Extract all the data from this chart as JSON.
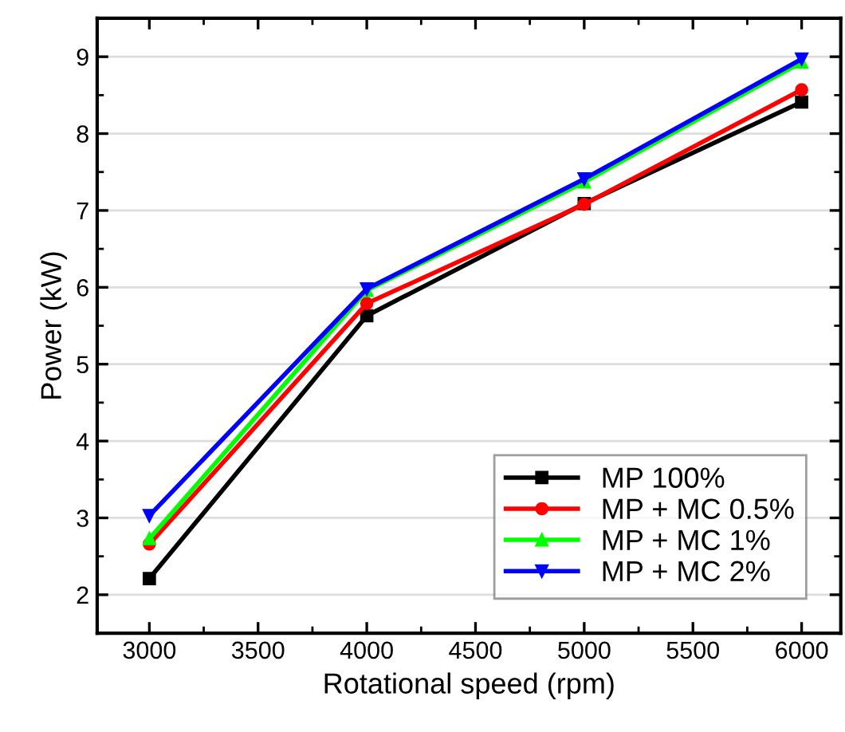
{
  "chart_data": {
    "type": "line",
    "xlabel": "Rotational speed (rpm)",
    "ylabel": "Power (kW)",
    "x": [
      3000,
      4000,
      5000,
      6000
    ],
    "series": [
      {
        "name": "MP 100%",
        "color": "#000000",
        "marker": "square",
        "values": [
          2.21,
          5.63,
          7.09,
          8.41
        ]
      },
      {
        "name": "MP + MC 0.5%",
        "color": "#ff0000",
        "marker": "circle",
        "values": [
          2.66,
          5.79,
          7.08,
          8.57
        ]
      },
      {
        "name": "MP + MC 1%",
        "color": "#00ff00",
        "marker": "triangle",
        "values": [
          2.73,
          5.96,
          7.37,
          8.93
        ]
      },
      {
        "name": "MP + MC 2%",
        "color": "#0000ff",
        "marker": "triangle_down",
        "values": [
          3.03,
          5.98,
          7.41,
          8.97
        ]
      }
    ],
    "xlim": [
      2760,
      6180
    ],
    "xticks": [
      3000,
      3500,
      4000,
      4500,
      5000,
      5500,
      6000
    ],
    "ylim": [
      1.5,
      9.5
    ],
    "yticks": [
      2,
      3,
      4,
      5,
      6,
      7,
      8,
      9
    ],
    "grid": "y",
    "legend": "bottom right",
    "line_style": "solid"
  }
}
